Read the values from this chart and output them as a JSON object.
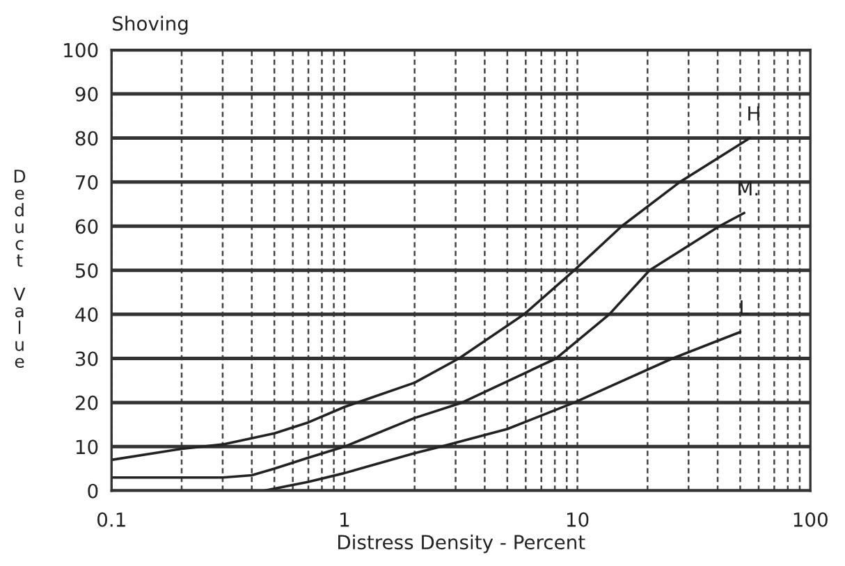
{
  "chart_data": {
    "type": "line",
    "title": "Shoving",
    "xlabel": "Distress Density - Percent",
    "ylabel": "Deduct Value",
    "log": "x",
    "grid": true,
    "xlim": [
      0.1,
      100
    ],
    "ylim": [
      0,
      100
    ],
    "xticks": [
      0.1,
      {
        "value": 0.2,
        "label": null
      },
      {
        "value": 0.3,
        "label": null
      },
      {
        "value": 0.4,
        "label": null
      },
      {
        "value": 0.5,
        "label": null
      },
      {
        "value": 0.6,
        "label": null
      },
      {
        "value": 0.7,
        "label": null
      },
      {
        "value": 0.8,
        "label": null
      },
      {
        "value": 0.9,
        "label": null
      },
      1,
      {
        "value": 2,
        "label": null
      },
      {
        "value": 3,
        "label": null
      },
      {
        "value": 4,
        "label": null
      },
      {
        "value": 5,
        "label": null
      },
      {
        "value": 6,
        "label": null
      },
      {
        "value": 7,
        "label": null
      },
      {
        "value": 8,
        "label": null
      },
      {
        "value": 9,
        "label": null
      },
      10,
      {
        "value": 20,
        "label": null
      },
      {
        "value": 30,
        "label": null
      },
      {
        "value": 40,
        "label": null
      },
      {
        "value": 50,
        "label": null
      },
      {
        "value": 60,
        "label": null
      },
      {
        "value": 70,
        "label": null
      },
      {
        "value": 80,
        "label": null
      },
      {
        "value": 90,
        "label": null
      },
      100
    ],
    "yticks": [
      0,
      10,
      20,
      30,
      40,
      50,
      60,
      70,
      80,
      90,
      100
    ],
    "series": [
      {
        "name": "H",
        "color": "#222222",
        "x": [
          0.1,
          0.2,
          0.3,
          0.5,
          0.7,
          1,
          2,
          3.1,
          5.9,
          9.7,
          15.5,
          27.5,
          55
        ],
        "values": [
          7,
          9.5,
          10.5,
          13,
          15.5,
          19,
          24.5,
          30,
          40,
          50,
          60,
          70,
          80
        ]
      },
      {
        "name": "M.",
        "color": "#222222",
        "x": [
          0.1,
          0.3,
          0.4,
          0.5,
          0.7,
          1,
          2,
          3.2,
          8.1,
          13.7,
          20.4,
          40.7,
          52
        ],
        "values": [
          3,
          3,
          3.5,
          5,
          7.5,
          10,
          16.5,
          20,
          30,
          40,
          50,
          60,
          63
        ]
      },
      {
        "name": "L",
        "color": "#222222",
        "x": [
          0.45,
          0.7,
          1,
          2,
          2.6,
          5,
          9.7,
          15,
          25.6,
          50
        ],
        "values": [
          0,
          2,
          4,
          8.5,
          10,
          14,
          20,
          24.5,
          30,
          36
        ]
      }
    ]
  }
}
